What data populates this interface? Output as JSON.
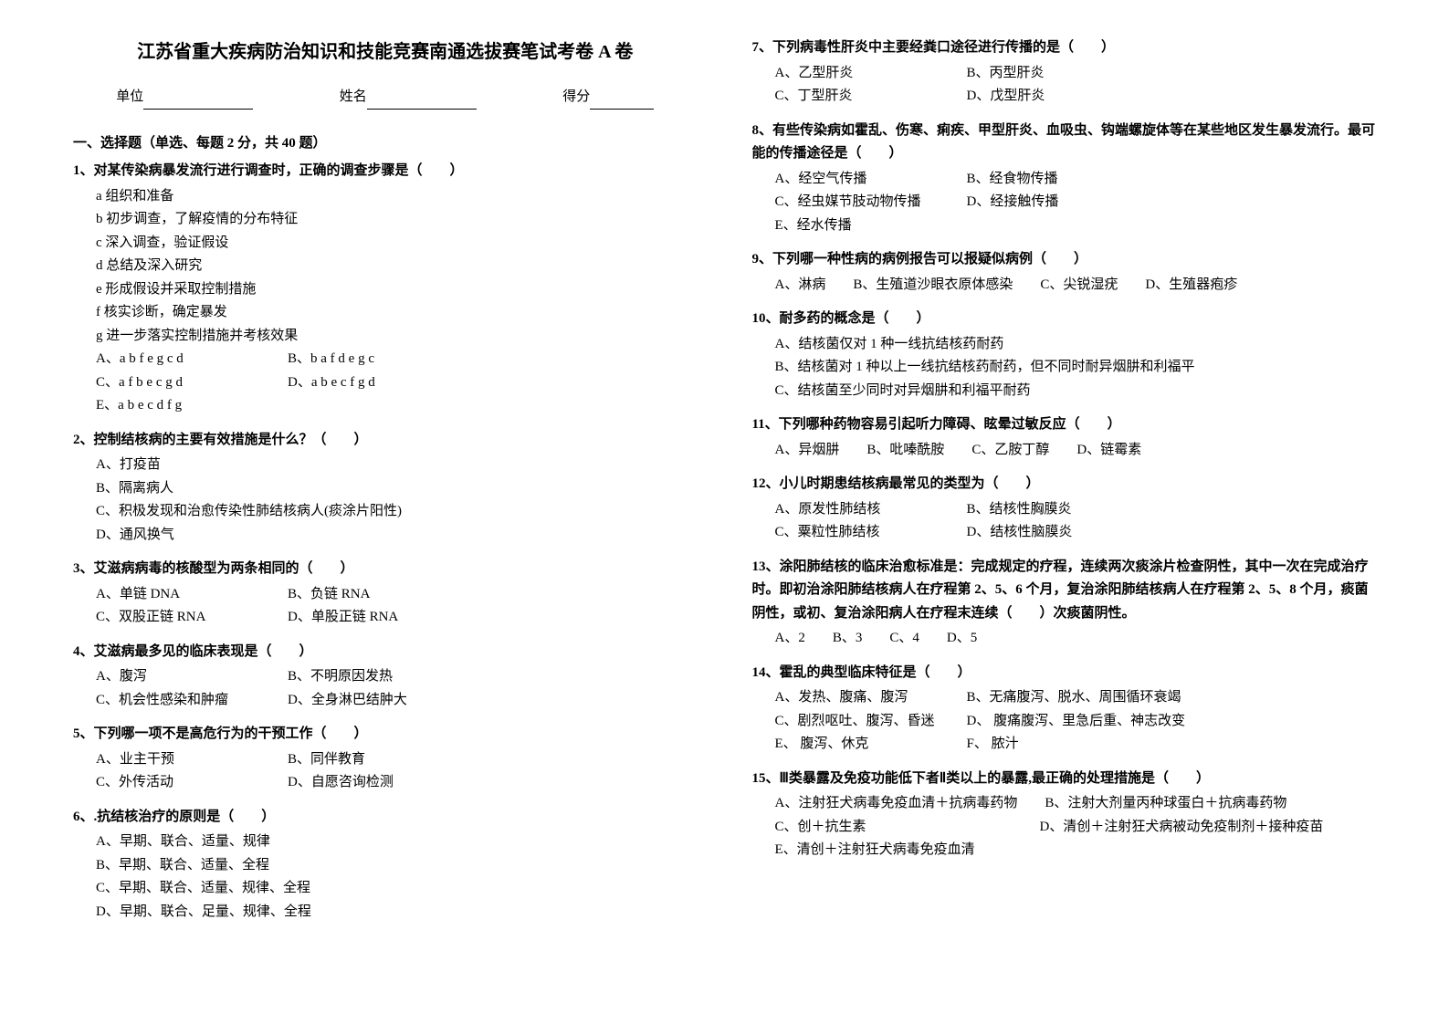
{
  "title": "江苏省重大疾病防治知识和技能竞赛南通选拔赛笔试考卷 A 卷",
  "header": {
    "unit_label": "单位",
    "name_label": "姓名",
    "score_label": "得分"
  },
  "section_title": "一、选择题（单选、每题 2 分，共 40 题）",
  "questions": [
    {
      "num": "1",
      "stem": "对某传染病暴发流行进行调查时，正确的调查步骤是（　　）",
      "subs": [
        "a 组织和准备",
        "b 初步调查，了解疫情的分布特征",
        "c 深入调查，验证假设",
        "d 总结及深入研究",
        "e 形成假设并采取控制措施",
        "f 核实诊断，确定暴发",
        "g 进一步落实控制措施并考核效果"
      ],
      "options": [
        {
          "label": "A、a b f e g c d"
        },
        {
          "label": "B、b a f d e g c"
        },
        {
          "label": "C、a f b e c g d"
        },
        {
          "label": "D、a b e c f g d"
        },
        {
          "label": "E、a b e c d f g"
        }
      ],
      "layout": "two-col"
    },
    {
      "num": "2",
      "stem": "控制结核病的主要有效措施是什么？（　　）",
      "options": [
        {
          "label": "A、打疫苗"
        },
        {
          "label": "B、隔离病人"
        },
        {
          "label": "C、积极发现和治愈传染性肺结核病人(痰涂片阳性)"
        },
        {
          "label": "D、通风换气"
        }
      ],
      "layout": "single"
    },
    {
      "num": "3",
      "stem": "艾滋病病毒的核酸型为两条相同的（　　）",
      "options": [
        {
          "label": "A、单链 DNA"
        },
        {
          "label": "B、负链 RNA"
        },
        {
          "label": "C、双股正链 RNA"
        },
        {
          "label": "D、单股正链 RNA"
        }
      ],
      "layout": "two-col"
    },
    {
      "num": "4",
      "stem": "艾滋病最多见的临床表现是（　　）",
      "options": [
        {
          "label": "A、腹泻"
        },
        {
          "label": "B、不明原因发热"
        },
        {
          "label": "C、机会性感染和肿瘤"
        },
        {
          "label": "D、全身淋巴结肿大"
        }
      ],
      "layout": "two-col"
    },
    {
      "num": "5",
      "stem": "下列哪一项不是高危行为的干预工作（　　）",
      "options": [
        {
          "label": "A、业主干预"
        },
        {
          "label": "B、同伴教育"
        },
        {
          "label": "C、外传活动"
        },
        {
          "label": "D、自愿咨询检测"
        }
      ],
      "layout": "two-col"
    },
    {
      "num": "6",
      "stem": ".抗结核治疗的原则是（　　）",
      "options": [
        {
          "label": "A、早期、联合、适量、规律"
        },
        {
          "label": "B、早期、联合、适量、全程"
        },
        {
          "label": "C、早期、联合、适量、规律、全程"
        },
        {
          "label": "D、早期、联合、足量、规律、全程"
        }
      ],
      "layout": "single"
    },
    {
      "num": "7",
      "stem": "下列病毒性肝炎中主要经粪口途径进行传播的是（　　）",
      "options": [
        {
          "label": "A、乙型肝炎"
        },
        {
          "label": "B、丙型肝炎"
        },
        {
          "label": "C、丁型肝炎"
        },
        {
          "label": "D、戊型肝炎"
        }
      ],
      "layout": "two-col"
    },
    {
      "num": "8",
      "stem": "有些传染病如霍乱、伤寒、痢疾、甲型肝炎、血吸虫、钩端螺旋体等在某些地区发生暴发流行。最可能的传播途径是（　　）",
      "options": [
        {
          "label": "A、经空气传播"
        },
        {
          "label": "B、经食物传播"
        },
        {
          "label": "C、经虫媒节肢动物传播"
        },
        {
          "label": "D、经接触传播"
        },
        {
          "label": "E、经水传播"
        }
      ],
      "layout": "two-col"
    },
    {
      "num": "9",
      "stem": "下列哪一种性病的病例报告可以报疑似病例（　　）",
      "options": [
        {
          "label": "A、淋病"
        },
        {
          "label": "B、生殖道沙眼衣原体感染"
        },
        {
          "label": "C、尖锐湿疣"
        },
        {
          "label": "D、生殖器疱疹"
        }
      ],
      "layout": "four-col"
    },
    {
      "num": "10",
      "stem": "耐多药的概念是（　　）",
      "options": [
        {
          "label": "A、结核菌仅对 1 种一线抗结核药耐药"
        },
        {
          "label": "B、结核菌对 1 种以上一线抗结核药耐药，但不同时耐异烟肼和利福平"
        },
        {
          "label": "C、结核菌至少同时对异烟肼和利福平耐药"
        }
      ],
      "layout": "single"
    },
    {
      "num": "11",
      "stem": "下列哪种药物容易引起听力障碍、眩晕过敏反应（　　）",
      "options": [
        {
          "label": "A、异烟肼"
        },
        {
          "label": "B、吡嗪酰胺"
        },
        {
          "label": "C、乙胺丁醇"
        },
        {
          "label": "D、链霉素"
        }
      ],
      "layout": "four-col"
    },
    {
      "num": "12",
      "stem": "小儿时期患结核病最常见的类型为（　　）",
      "options": [
        {
          "label": "A、原发性肺结核"
        },
        {
          "label": "B、结核性胸膜炎"
        },
        {
          "label": "C、粟粒性肺结核"
        },
        {
          "label": "D、结核性脑膜炎"
        }
      ],
      "layout": "two-col"
    },
    {
      "num": "13",
      "stem": "涂阳肺结核的临床治愈标准是：完成规定的疗程，连续两次痰涂片检查阴性，其中一次在完成治疗时。即初治涂阳肺结核病人在疗程第 2、5、6 个月，复治涂阳肺结核病人在疗程第 2、5、8 个月，痰菌阴性，或初、复治涂阳病人在疗程末连续（　　）次痰菌阴性。",
      "options": [
        {
          "label": "A、2"
        },
        {
          "label": "B、3"
        },
        {
          "label": "C、4"
        },
        {
          "label": "D、5"
        }
      ],
      "layout": "four-col"
    },
    {
      "num": "14",
      "stem": "霍乱的典型临床特征是（　　）",
      "options": [
        {
          "label": "A、发热、腹痛、腹泻"
        },
        {
          "label": "B、无痛腹泻、脱水、周围循环衰竭"
        },
        {
          "label": "C、剧烈呕吐、腹泻、昏迷"
        },
        {
          "label": "D、 腹痛腹泻、里急后重、神志改变"
        },
        {
          "label": "E、 腹泻、休克"
        },
        {
          "label": "F、 脓汁"
        }
      ],
      "layout": "two-col"
    },
    {
      "num": "15",
      "stem": "Ⅲ类暴露及免疫功能低下者Ⅱ类以上的暴露,最正确的处理措施是（　　）",
      "options": [
        {
          "label": "A、注射狂犬病毒免疫血清＋抗病毒药物"
        },
        {
          "label": "B、注射大剂量丙种球蛋白＋抗病毒药物"
        },
        {
          "label": "C、创＋抗生素"
        },
        {
          "label": "D、清创＋注射狂犬病被动免疫制剂＋接种疫苗"
        },
        {
          "label": "E、清创＋注射狂犬病毒免疫血清"
        }
      ],
      "layout": "two-col-wide"
    }
  ]
}
